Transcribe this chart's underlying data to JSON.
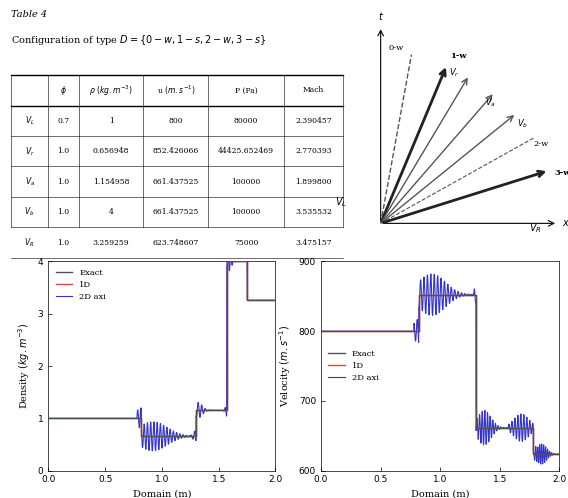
{
  "title_line1": "Table 4",
  "title_line2": "Configuration of type $D = \\{0-w, 1-s, 2-w, 3-s\\}$",
  "table_headers": [
    "",
    "$\\phi$",
    "$\\rho\\ (kg.m^{-3})$",
    "u $(m.s^{-1})$",
    "P (Pa)",
    "Mach"
  ],
  "table_rows": [
    [
      "$V_L$",
      "0.7",
      "1",
      "800",
      "80000",
      "2.390457"
    ],
    [
      "$V_r$",
      "1.0",
      "0.656948",
      "852.426066",
      "44425.652469",
      "2.770393"
    ],
    [
      "$V_a$",
      "1.0",
      "1.154958",
      "661.437525",
      "100000",
      "1.899800"
    ],
    [
      "$V_b$",
      "1.0",
      "4",
      "661.437525",
      "100000",
      "3.535532"
    ],
    [
      "$V_R$",
      "1.0",
      "3.259259",
      "623.748607",
      "75000",
      "3.475157"
    ]
  ],
  "plot1_ylabel": "Density $(kg.m^{-3})$",
  "plot1_xlabel": "Domain (m)",
  "plot1_ylim": [
    0,
    4
  ],
  "plot1_xlim": [
    0,
    2
  ],
  "plot1_yticks": [
    0,
    1,
    2,
    3,
    4
  ],
  "plot2_ylabel": "Velocity $(m.s^{-1})$",
  "plot2_xlabel": "Domain (m)",
  "plot2_ylim": [
    600,
    900
  ],
  "plot2_xlim": [
    0,
    2
  ],
  "plot2_yticks": [
    600,
    700,
    800,
    900
  ],
  "color_exact": "#505050",
  "color_1D": "#dd4444",
  "color_2D": "#3333cc",
  "legend_labels": [
    "Exact",
    "1D",
    "2D axi"
  ],
  "xticks": [
    0,
    0.5,
    1,
    1.5,
    2
  ]
}
